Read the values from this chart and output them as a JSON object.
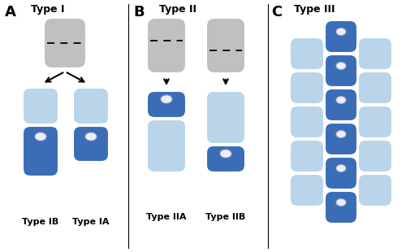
{
  "bg_color": "#ffffff",
  "gray_cell": "#c0c0c0",
  "light_blue_cell": "#bad4ea",
  "dark_blue_cell": "#3a6db5",
  "section_A_label": "A",
  "section_B_label": "B",
  "section_C_label": "C",
  "type1_label": "Type I",
  "type2_label": "Type II",
  "type3_label": "Type III",
  "typeIB_label": "Type IB",
  "typeIA_label": "Type IA",
  "typeIIA_label": "Type IIA",
  "typeIIB_label": "Type IIB",
  "fig_w": 5.0,
  "fig_h": 3.1,
  "dpi": 100
}
